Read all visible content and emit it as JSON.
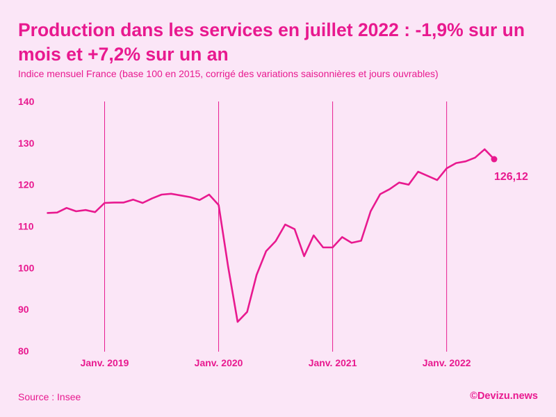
{
  "header": {
    "title": "Production dans les services en juillet 2022 : -1,9% sur un mois et +7,2% sur un an",
    "subtitle": "Indice mensuel France (base 100 en 2015, corrigé des variations saisonnières et jours ouvrables)"
  },
  "footer": {
    "source": "Source : Insee",
    "brand": "©Devizu.news"
  },
  "colors": {
    "accent": "#e8198f",
    "background": "#fbe6f7"
  },
  "chart_data": {
    "type": "line",
    "title": "Production dans les services en juillet 2022 : -1,9% sur un mois et +7,2% sur un an",
    "subtitle": "Indice mensuel France (base 100 en 2015, corrigé des variations saisonnières et jours ouvrables)",
    "xlabel": "",
    "ylabel": "",
    "ylim": [
      80,
      140
    ],
    "yticks": [
      80,
      90,
      100,
      110,
      120,
      130,
      140
    ],
    "x_start": "2018-07",
    "grid": "vertical lines at each January",
    "xticks": [
      {
        "month_index": 6,
        "label": "Janv. 2019"
      },
      {
        "month_index": 18,
        "label": "Janv. 2020"
      },
      {
        "month_index": 30,
        "label": "Janv. 2021"
      },
      {
        "month_index": 42,
        "label": "Janv. 2022"
      }
    ],
    "series": [
      {
        "name": "Production dans les services",
        "values": [
          113.2,
          113.3,
          114.4,
          113.6,
          113.9,
          113.4,
          115.6,
          115.7,
          115.7,
          116.4,
          115.6,
          116.7,
          117.6,
          117.8,
          117.4,
          117.0,
          116.3,
          117.6,
          115.1,
          100.3,
          87.0,
          89.4,
          98.3,
          104.0,
          106.4,
          110.4,
          109.3,
          102.8,
          107.8,
          104.9,
          104.9,
          107.4,
          106.0,
          106.5,
          113.6,
          117.7,
          118.9,
          120.5,
          120.0,
          123.1,
          122.1,
          121.1,
          123.9,
          125.2,
          125.6,
          126.5,
          128.5,
          126.12
        ]
      }
    ],
    "annotations": [
      {
        "label": "126,12",
        "point_index": 47,
        "value": 126.12
      }
    ]
  }
}
